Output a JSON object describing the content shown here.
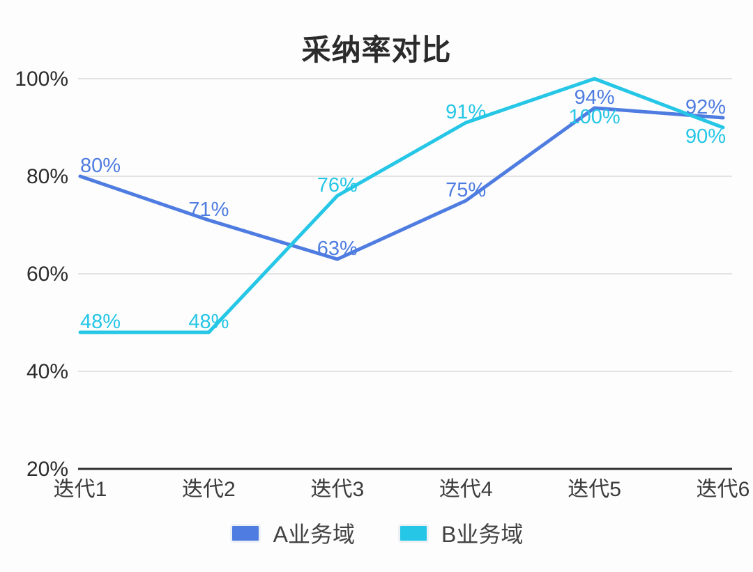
{
  "chart_data": {
    "type": "line",
    "title": "采纳率对比",
    "categories": [
      "迭代1",
      "迭代2",
      "迭代3",
      "迭代4",
      "迭代5",
      "迭代6"
    ],
    "series": [
      {
        "name": "A业务域",
        "color": "#4e7ce0",
        "values": [
          80,
          71,
          63,
          75,
          94,
          92
        ],
        "label_dy": [
          -6,
          -6,
          -6,
          -6,
          -6,
          -6
        ]
      },
      {
        "name": "B业务域",
        "color": "#25c6e6",
        "values": [
          48,
          48,
          76,
          91,
          100,
          90
        ],
        "label_dy": [
          -6,
          -6,
          -6,
          -6,
          64,
          22
        ]
      }
    ],
    "y_ticks": [
      100,
      80,
      60,
      40,
      20
    ],
    "y_tick_suffix": "%",
    "data_label_suffix": "%",
    "ylim": [
      20,
      100
    ],
    "grid": true,
    "legend_position": "bottom",
    "colors": {
      "grid": "#e3e3e3",
      "axis": "#2f2f2f",
      "tick_text": "#2c2c2c",
      "category_text": "#3b3b3b"
    }
  },
  "legend": {
    "items": [
      {
        "label": "A业务域",
        "color": "#4e7ce0"
      },
      {
        "label": "B业务域",
        "color": "#25c6e6"
      }
    ]
  }
}
